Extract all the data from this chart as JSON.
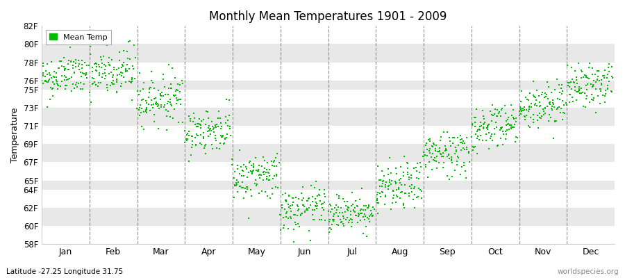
{
  "title": "Monthly Mean Temperatures 1901 - 2009",
  "ylabel": "Temperature",
  "xlabel_bottom": "Latitude -27.25 Longitude 31.75",
  "watermark": "worldspecies.org",
  "legend_label": "Mean Temp",
  "dot_color": "#00bb00",
  "background_color": "#f2f2f2",
  "stripe_light": "#ffffff",
  "stripe_dark": "#e8e8e8",
  "ylim_min": 58,
  "ylim_max": 82,
  "yticks": [
    58,
    60,
    62,
    64,
    65,
    67,
    69,
    71,
    73,
    75,
    76,
    78,
    80,
    82
  ],
  "ytick_labels": [
    "58F",
    "60F",
    "62F",
    "64F",
    "65F",
    "67F",
    "69F",
    "71F",
    "73F",
    "75F",
    "76F",
    "78F",
    "80F",
    "82F"
  ],
  "months": [
    "Jan",
    "Feb",
    "Mar",
    "Apr",
    "May",
    "Jun",
    "Jul",
    "Aug",
    "Sep",
    "Oct",
    "Nov",
    "Dec"
  ],
  "monthly_means": [
    76.5,
    76.8,
    74.0,
    70.5,
    65.5,
    61.8,
    61.5,
    64.2,
    68.0,
    71.0,
    73.2,
    75.5
  ],
  "monthly_stds": [
    1.2,
    1.5,
    1.3,
    1.2,
    1.3,
    1.2,
    1.0,
    1.3,
    1.3,
    1.3,
    1.3,
    1.2
  ],
  "n_years": 109,
  "seed": 42,
  "marker_size": 4
}
